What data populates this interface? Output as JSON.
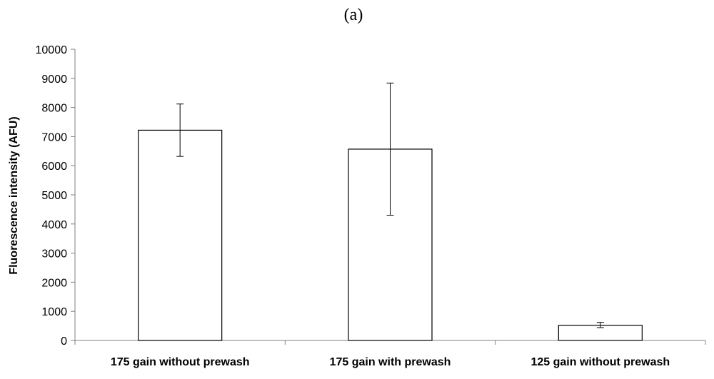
{
  "chart_data": {
    "type": "bar",
    "title": "(a)",
    "xlabel": "",
    "ylabel": "Fluorescence intensity (AFU)",
    "categories": [
      "175 gain without prewash",
      "175 gain with prewash",
      "125 gain without prewash"
    ],
    "values": [
      7220,
      6570,
      520
    ],
    "error_low": [
      6320,
      4300,
      440
    ],
    "error_high": [
      8120,
      8840,
      620
    ],
    "ylim": [
      0,
      10000
    ],
    "yticks": [
      0,
      1000,
      2000,
      3000,
      4000,
      5000,
      6000,
      7000,
      8000,
      9000,
      10000
    ],
    "grid": false,
    "legend": "none",
    "colors": {
      "bar_fill": "#ffffff",
      "bar_stroke": "#000000",
      "axis": "#808080"
    }
  }
}
